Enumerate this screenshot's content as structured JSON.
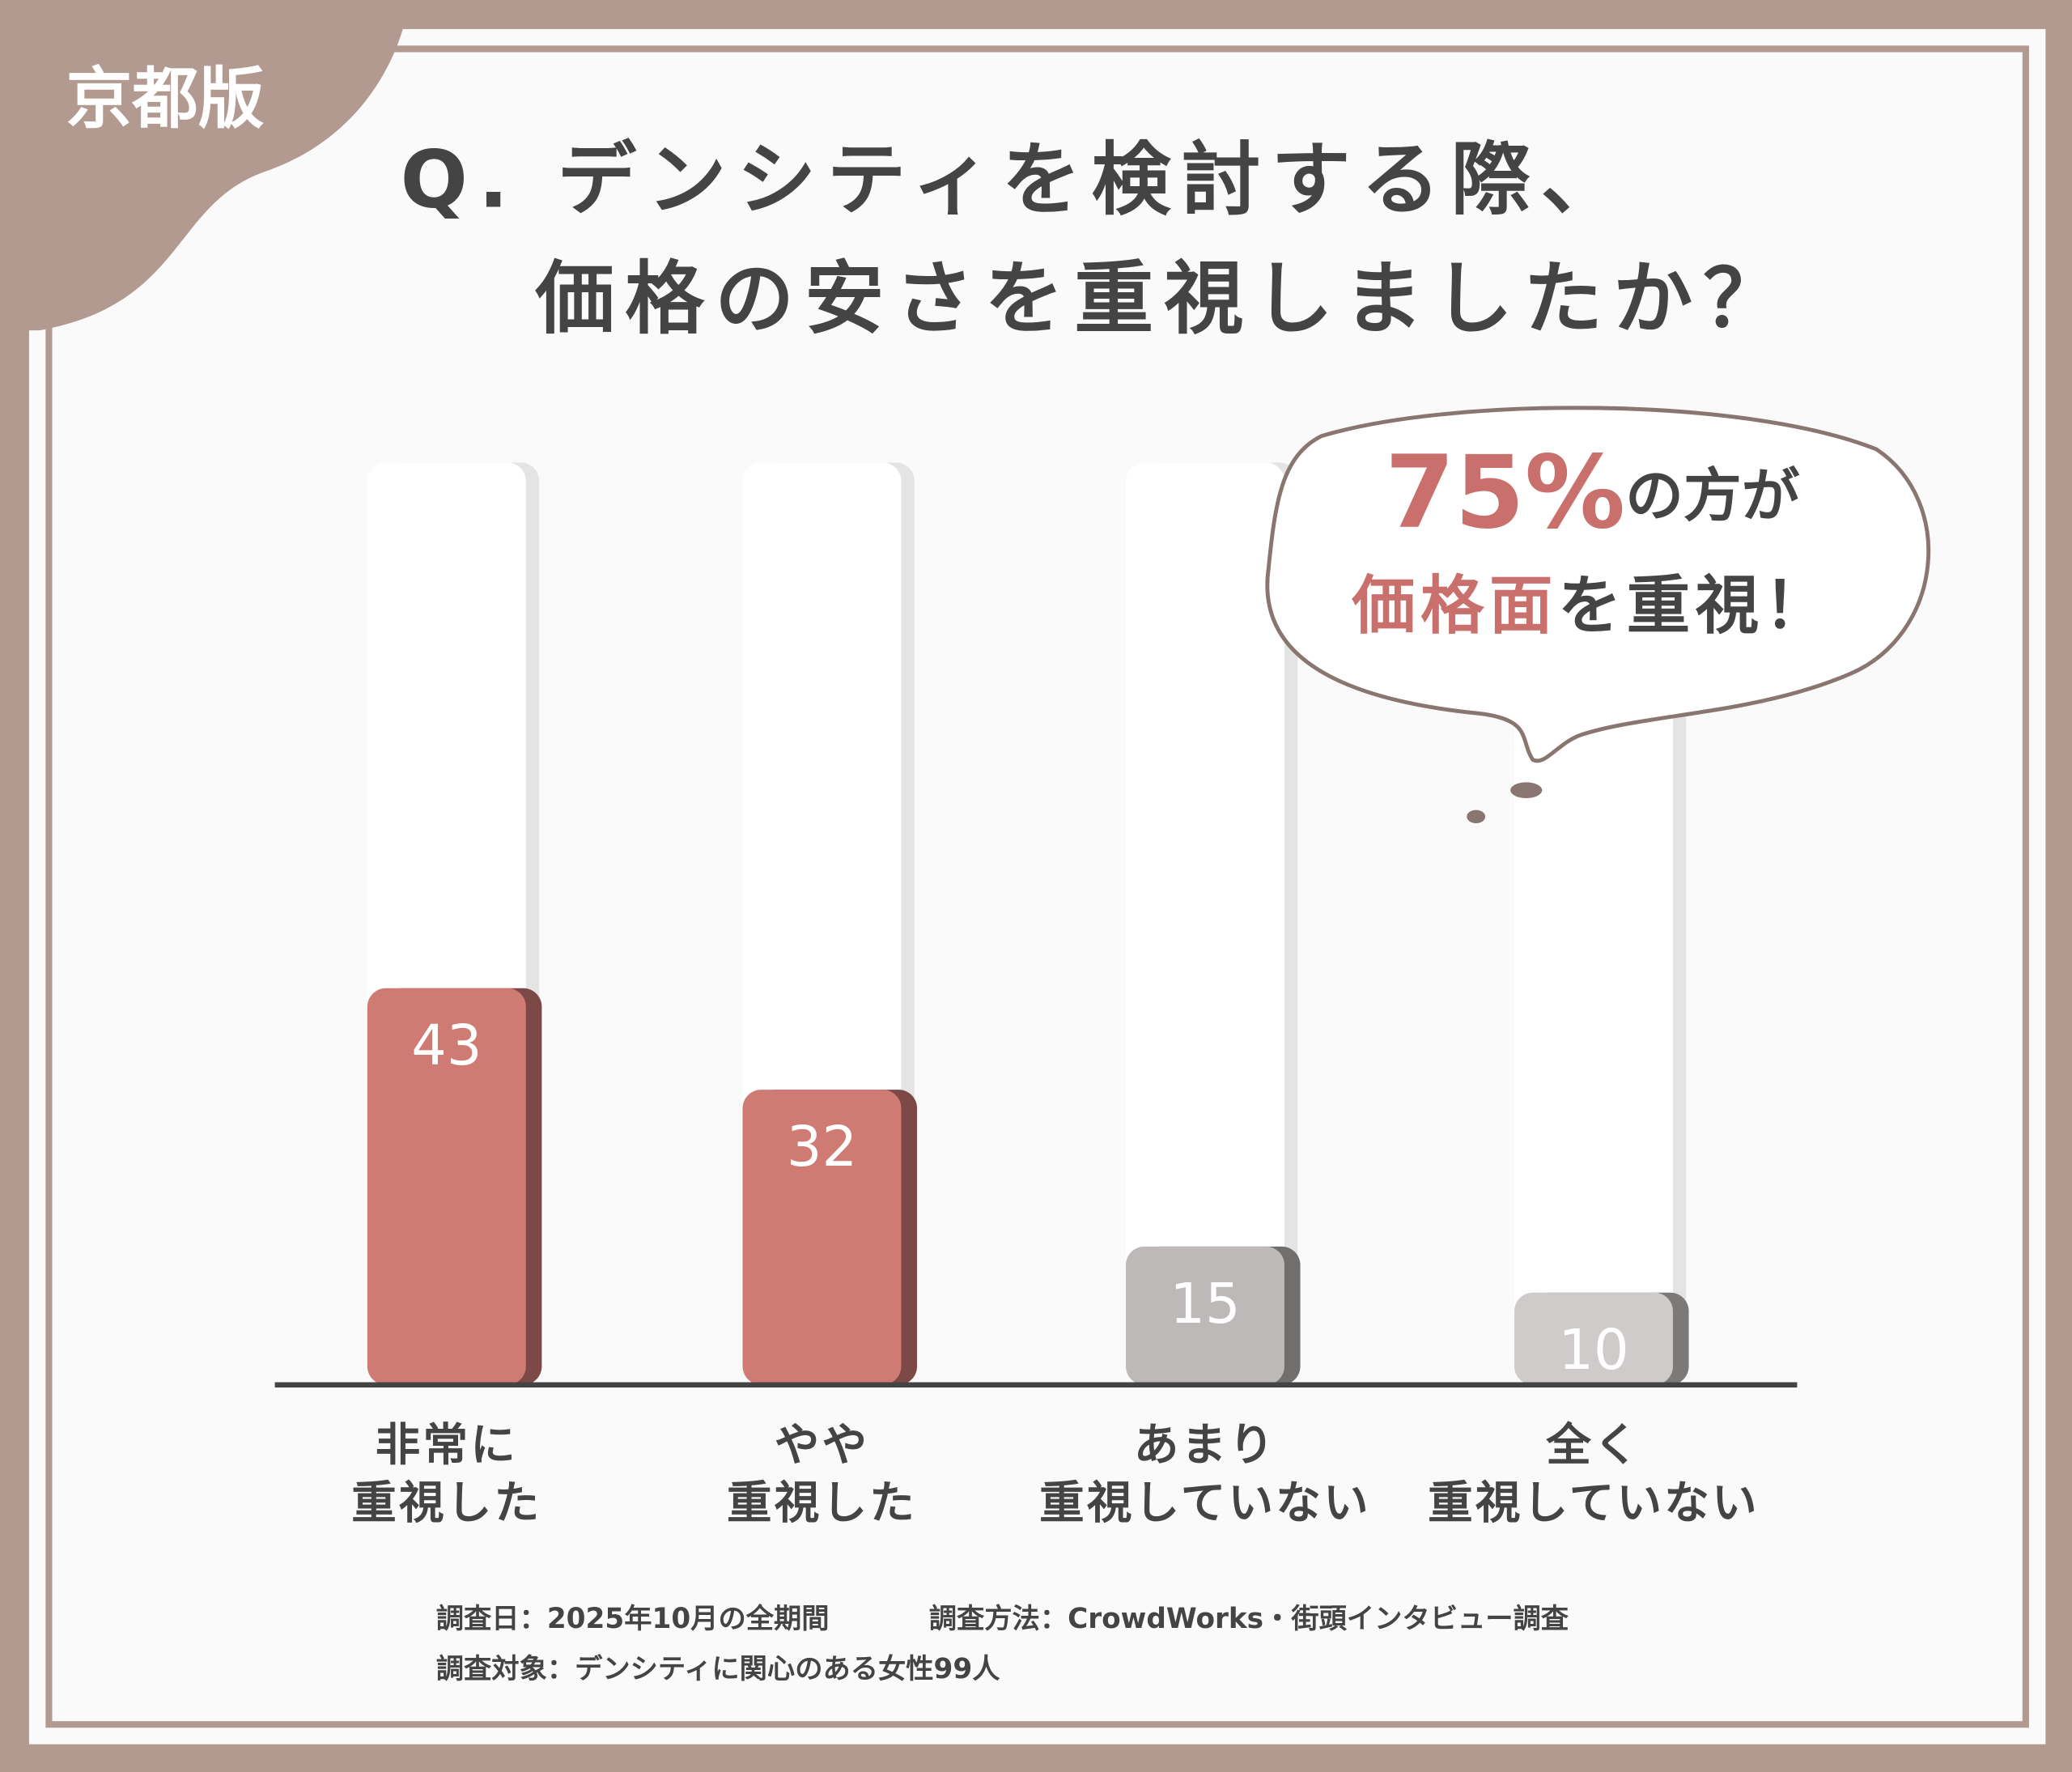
{
  "badge": "京都版",
  "chart_data": {
    "type": "bar",
    "title": [
      "Q. デンシティを検討する際、",
      "価格の安さを重視しましたか？"
    ],
    "categories": [
      "非常に\n重視した",
      "やや\n重視した",
      "あまり\n重視していない",
      "全く\n重視していない"
    ],
    "values": [
      43,
      32,
      15,
      10
    ],
    "colors": [
      "#d07a74",
      "#d07a74",
      "#bdb9b8",
      "#cfcbca"
    ],
    "ylim": [
      0,
      100
    ]
  },
  "callout": {
    "percent": "75%",
    "line1_rest": "の方が",
    "highlight": "価格面",
    "line2_rest": "を重視！"
  },
  "footnotes": [
    "調査日：2025年10月の全期間",
    "調査方法：CrowdWorks・街頭インタビュー調査",
    "調査対象：デンシティに関心のある女性99人"
  ]
}
